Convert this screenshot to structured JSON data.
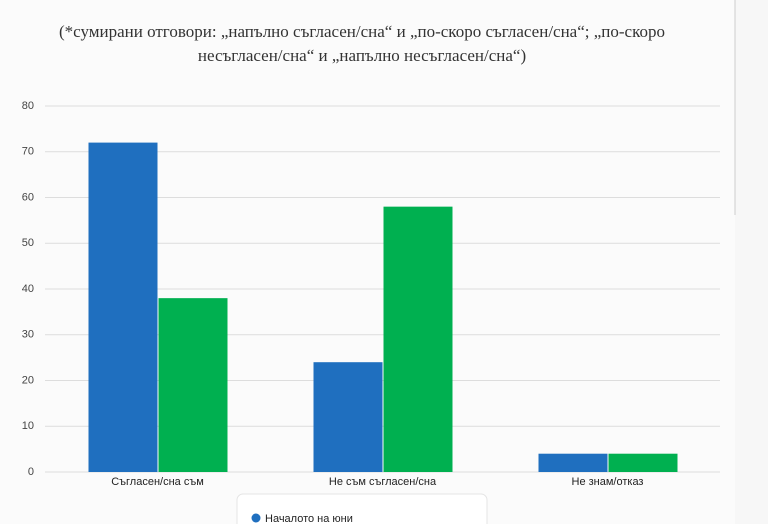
{
  "chart_data": {
    "type": "bar",
    "subtitle": [
      "(*сумирани отговори: „напълно съгласен/сна“ и „по-скоро съгласен/сна“; „по-скоро",
      "несъгласен/сна“ и „напълно несъгласен/сна“)"
    ],
    "categories": [
      "Съгласен/сна съм",
      "Не съм съгласен/сна",
      "Не знам/отказ"
    ],
    "series": [
      {
        "name": "Началото на юни",
        "color": "#1f6fbf",
        "values": [
          72,
          24,
          4
        ]
      },
      {
        "color": "#00b050",
        "values": [
          38,
          58,
          4
        ]
      }
    ],
    "ylim": [
      0,
      80
    ],
    "yticks": [
      0,
      10,
      20,
      30,
      40,
      50,
      60,
      70,
      80
    ],
    "grid": true,
    "legend": "bottom"
  }
}
